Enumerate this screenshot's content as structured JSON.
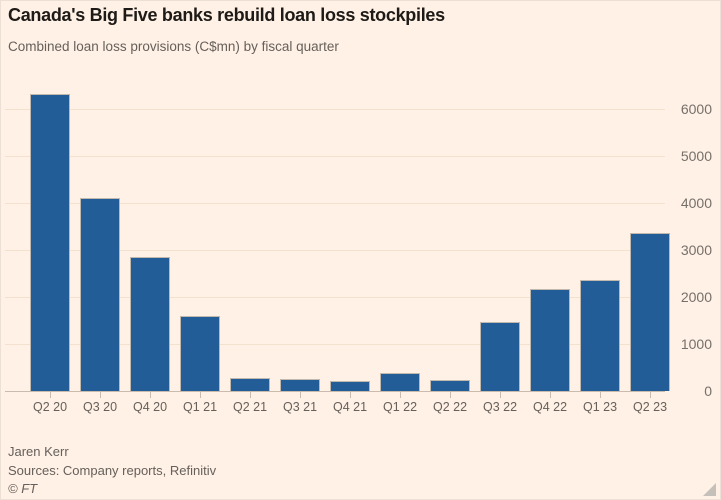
{
  "chart_data": {
    "type": "bar",
    "title": "Canada's Big Five banks rebuild loan loss stockpiles",
    "subtitle": "Combined loan loss provisions (C$mn) by fiscal quarter",
    "categories": [
      "Q2 20",
      "Q3 20",
      "Q4 20",
      "Q1 21",
      "Q2 21",
      "Q3 21",
      "Q4 21",
      "Q1 22",
      "Q2 22",
      "Q3 22",
      "Q4 22",
      "Q1 23",
      "Q2 23"
    ],
    "values": [
      6300,
      4100,
      2850,
      1600,
      270,
      260,
      210,
      380,
      240,
      1470,
      2170,
      2360,
      3350
    ],
    "xlabel": "",
    "ylabel": "",
    "y_ticks": [
      0,
      1000,
      2000,
      3000,
      4000,
      5000,
      6000
    ],
    "ylim": [
      0,
      6500
    ],
    "grid": "horizontal",
    "y_axis_position": "right",
    "legend": "none",
    "bar_color": "#235d97",
    "background_color": "#fff1e5",
    "gridline_color": "#f3e1ce",
    "axis_color": "#c9bcae",
    "label_color": "#66605b"
  },
  "footer": {
    "byline": "Jaren Kerr",
    "source": "Sources: Company reports, Refinitiv",
    "credit": "© FT"
  }
}
